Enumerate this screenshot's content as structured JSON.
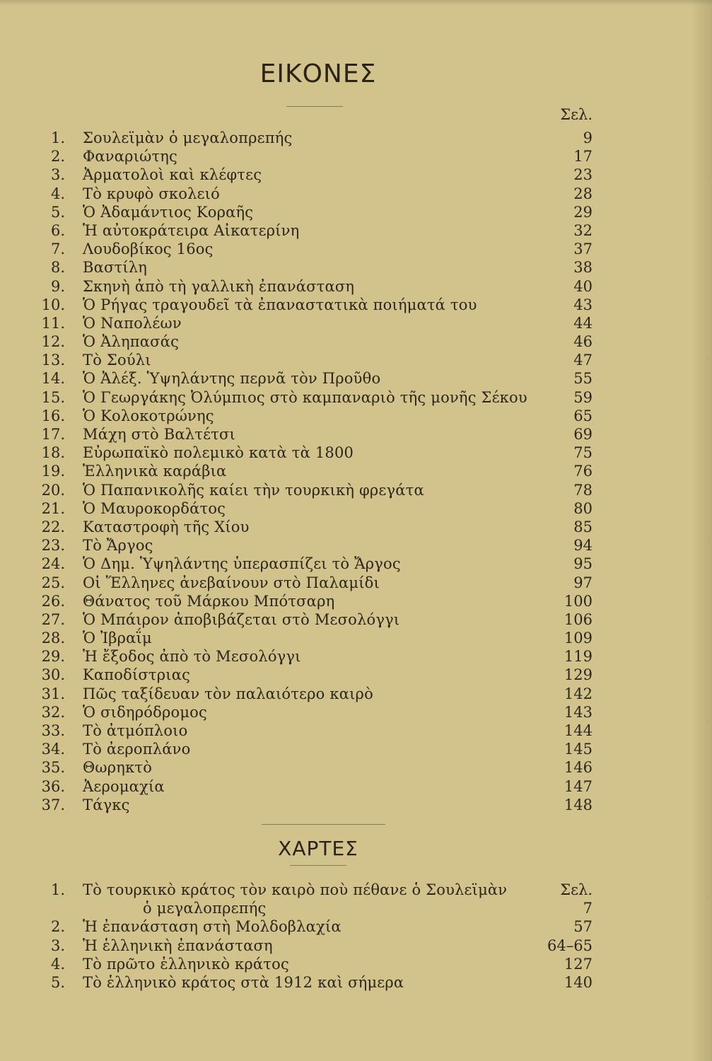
{
  "pictures": {
    "heading": "ΕΙΚΟΝΕΣ",
    "page_col_label": "Σελ.",
    "items": [
      {
        "num": "1.",
        "title": "Σουλεϊμὰν ὁ μεγαλοπρεπής",
        "page": "9"
      },
      {
        "num": "2.",
        "title": "Φαναριώτης",
        "page": "17"
      },
      {
        "num": "3.",
        "title": "Ἀρματολοὶ καὶ κλέφτες",
        "page": "23"
      },
      {
        "num": "4.",
        "title": "Τὸ κρυφὸ σκολειό",
        "page": "28"
      },
      {
        "num": "5.",
        "title": "Ὁ Ἀδαμάντιος Κοραῆς",
        "page": "29"
      },
      {
        "num": "6.",
        "title": "Ἡ αὐτοκράτειρα Αἰκατερίνη",
        "page": "32"
      },
      {
        "num": "7.",
        "title": "Λουδοβίκος 16ος",
        "page": "37"
      },
      {
        "num": "8.",
        "title": "Βαστίλη",
        "page": "38"
      },
      {
        "num": "9.",
        "title": "Σκηνὴ ἀπὸ τὴ γαλλικὴ ἐπανάσταση",
        "page": "40"
      },
      {
        "num": "10.",
        "title": "Ὁ Ρήγας τραγουδεῖ τὰ ἐπαναστατικὰ ποιήματά του",
        "page": "43"
      },
      {
        "num": "11.",
        "title": "Ὁ Ναπολέων",
        "page": "44"
      },
      {
        "num": "12.",
        "title": "Ὁ Ἀληπασάς",
        "page": "46"
      },
      {
        "num": "13.",
        "title": "Τὸ Σούλι",
        "page": "47"
      },
      {
        "num": "14.",
        "title": "Ὁ Ἀλέξ. Ὑψηλάντης περνᾶ τὸν Προῦθο",
        "page": "55"
      },
      {
        "num": "15.",
        "title": "Ὁ Γεωργάκης Ὀλύμπιος στὸ καμπαναριὸ τῆς μονῆς Σέκου",
        "page": "59"
      },
      {
        "num": "16.",
        "title": "Ὁ Κολοκοτρώνης",
        "page": "65"
      },
      {
        "num": "17.",
        "title": "Μάχη στὸ Βαλτέτσι",
        "page": "69"
      },
      {
        "num": "18.",
        "title": "Εὐρωπαϊκὸ πολεμικὸ κατὰ τὰ 1800",
        "page": "75"
      },
      {
        "num": "19.",
        "title": "Ἑλληνικὰ καράβια",
        "page": "76"
      },
      {
        "num": "20.",
        "title": "Ὁ Παπανικολῆς καίει τὴν τουρκικὴ φρεγάτα",
        "page": "78"
      },
      {
        "num": "21.",
        "title": "Ὁ Μαυροκορδάτος",
        "page": "80"
      },
      {
        "num": "22.",
        "title": "Καταστροφὴ τῆς Χίου",
        "page": "85"
      },
      {
        "num": "23.",
        "title": "Τὸ Ἄργος",
        "page": "94"
      },
      {
        "num": "24.",
        "title": "Ὁ Δημ. Ὑψηλάντης ὑπερασπίζει τὸ Ἄργος",
        "page": "95"
      },
      {
        "num": "25.",
        "title": "Οἱ Ἕλληνες ἀνεβαίνουν στὸ Παλαμίδι",
        "page": "97"
      },
      {
        "num": "26.",
        "title": "Θάνατος τοῦ Μάρκου Μπότσαρη",
        "page": "100"
      },
      {
        "num": "27.",
        "title": "Ὁ Μπάιρον ἀποβιβάζεται στὸ Μεσολόγγι",
        "page": "106"
      },
      {
        "num": "28.",
        "title": "Ὁ Ἰβραΐμ",
        "page": "109"
      },
      {
        "num": "29.",
        "title": "Ἡ ἔξοδος ἀπὸ τὸ Μεσολόγγι",
        "page": "119"
      },
      {
        "num": "30.",
        "title": "Καποδίστριας",
        "page": "129"
      },
      {
        "num": "31.",
        "title": "Πῶς ταξίδευαν τὸν παλαιότερο καιρὸ",
        "page": "142"
      },
      {
        "num": "32.",
        "title": "Ὁ σιδηρόδρομος",
        "page": "143"
      },
      {
        "num": "33.",
        "title": "Τὸ ἀτμόπλοιο",
        "page": "144"
      },
      {
        "num": "34.",
        "title": "Τὸ ἀεροπλάνο",
        "page": "145"
      },
      {
        "num": "35.",
        "title": "Θωρηκτὸ",
        "page": "146"
      },
      {
        "num": "36.",
        "title": "Ἀερομαχία",
        "page": "147"
      },
      {
        "num": "37.",
        "title": "Τάγκς",
        "page": "148"
      }
    ]
  },
  "maps": {
    "heading": "ΧΑΡΤΕΣ",
    "items": [
      {
        "num": "1.",
        "title": "Τὸ τουρκικὸ κράτος τὸν καιρὸ ποὺ πέθανε ὁ Σουλεϊμὰν",
        "page": "Σελ.",
        "continuation": "ὁ μεγαλοπρεπής",
        "continuation_page": "7"
      },
      {
        "num": "2.",
        "title": "Ἡ ἐπανάσταση στὴ Μολδοβλαχία",
        "page": "57"
      },
      {
        "num": "3.",
        "title": "Ἡ ἑλληνικὴ ἐπανάσταση",
        "page": "64–65"
      },
      {
        "num": "4.",
        "title": "Τὸ πρῶτο ἑλληνικὸ κράτος",
        "page": "127"
      },
      {
        "num": "5.",
        "title": "Τὸ ἑλληνικὸ κράτος στὰ 1912 καὶ σήμερα",
        "page": "140"
      }
    ]
  }
}
